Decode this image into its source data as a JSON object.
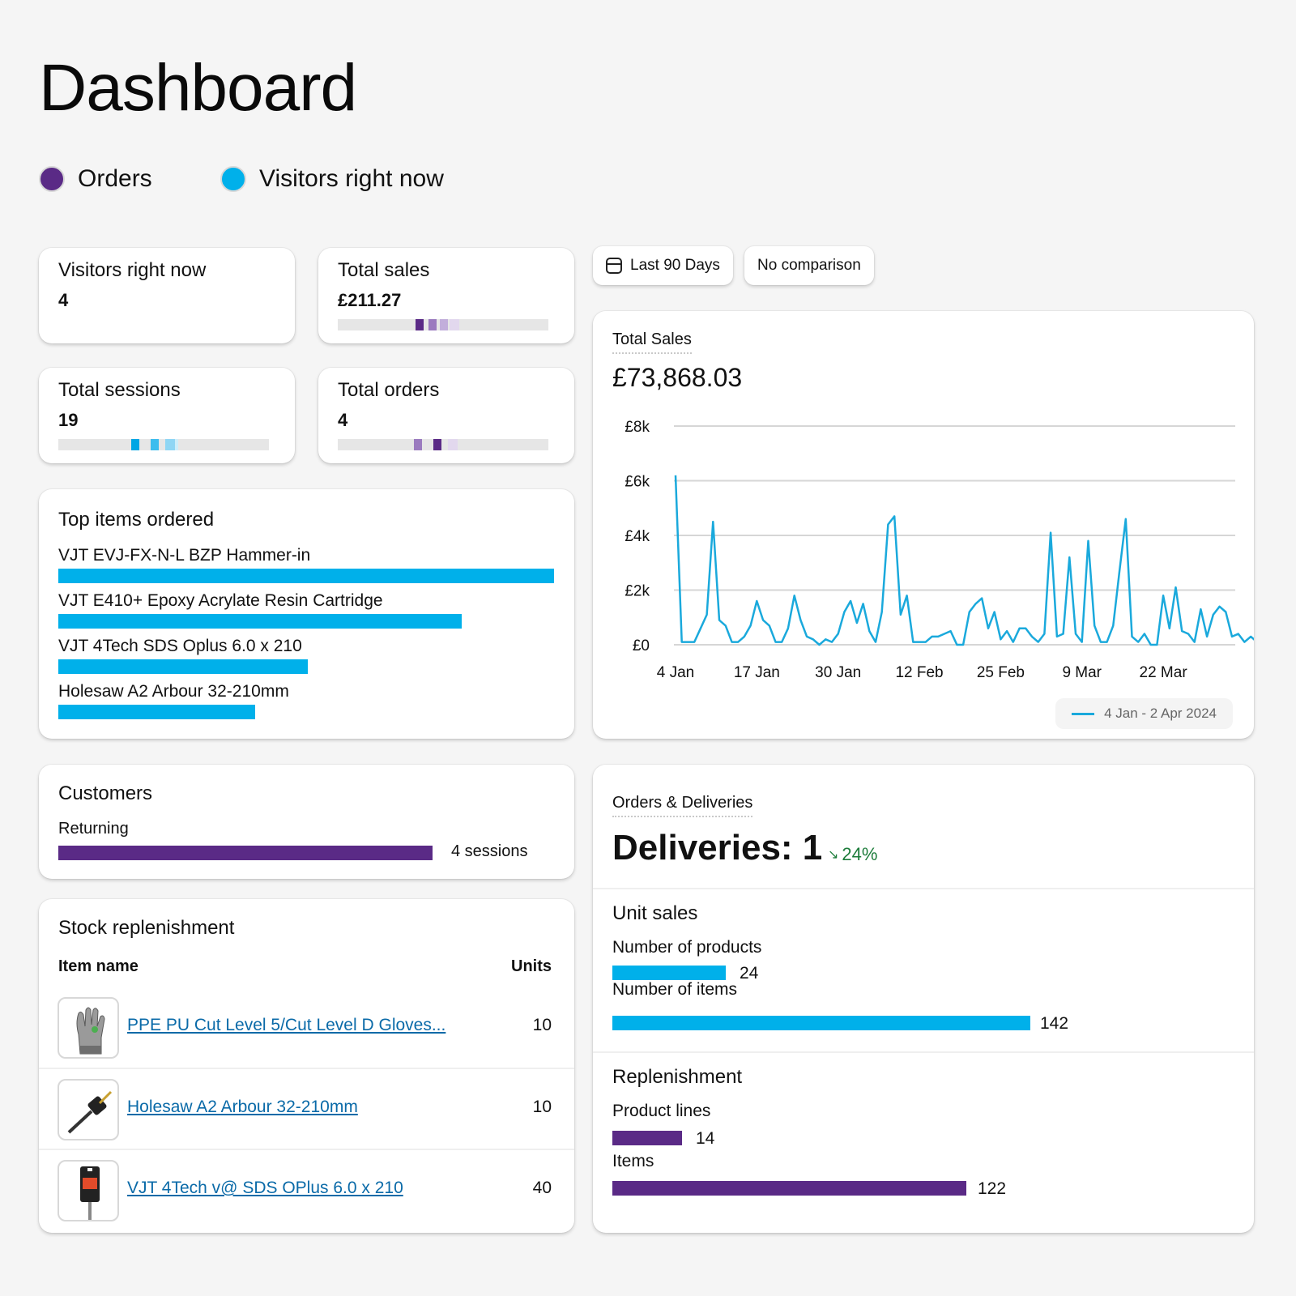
{
  "page": {
    "title": "Dashboard"
  },
  "legend": [
    {
      "label": "Orders",
      "color": "#5a2a86"
    },
    {
      "label": "Visitors right now",
      "color": "#00b0ea"
    }
  ],
  "kpis": {
    "visitors": {
      "label": "Visitors right now",
      "value": "4"
    },
    "sales": {
      "label": "Total sales",
      "value": "£211.27",
      "level": 0.58
    },
    "sessions": {
      "label": "Total sessions",
      "value": "19",
      "level": 0.58
    },
    "orders": {
      "label": "Total orders",
      "value": "4",
      "level": 0.58
    }
  },
  "filters": {
    "range_label": "Last 90 Days",
    "comparison_label": "No comparison"
  },
  "top_items": {
    "title": "Top items ordered",
    "items": [
      {
        "name": "VJT EVJ-FX-N-L BZP Hammer-in",
        "share": 1.0
      },
      {
        "name": "VJT E410+ Epoxy Acrylate Resin Cartridge",
        "share": 0.813
      },
      {
        "name": "VJT 4Tech SDS Oplus 6.0 x 210",
        "share": 0.503
      },
      {
        "name": "Holesaw A2 Arbour 32-210mm",
        "share": 0.397
      }
    ]
  },
  "total_sales_chart": {
    "title": "Total Sales",
    "total": "£73,868.03",
    "legend_label": "4 Jan - 2 Apr 2024",
    "color": "#1aa9dc",
    "chart_data": {
      "type": "line",
      "ylim": [
        0,
        8000
      ],
      "ytick_labels": [
        "£8k",
        "£6k",
        "£4k",
        "£2k",
        "£0"
      ],
      "yticks": [
        8000,
        6000,
        4000,
        2000,
        0
      ],
      "xtick_labels": [
        "4 Jan",
        "17 Jan",
        "30 Jan",
        "12 Feb",
        "25 Feb",
        "9 Mar",
        "22 Mar"
      ],
      "xticks": [
        0,
        13,
        26,
        39,
        52,
        65,
        78
      ],
      "xlim": [
        0,
        89
      ],
      "series": [
        {
          "name": "4 Jan - 2 Apr 2024",
          "values": [
            6200,
            100,
            100,
            100,
            600,
            1100,
            4500,
            900,
            700,
            100,
            100,
            300,
            700,
            1600,
            900,
            700,
            100,
            100,
            600,
            1800,
            900,
            300,
            200,
            0,
            200,
            100,
            400,
            1200,
            1600,
            800,
            1500,
            500,
            100,
            1200,
            4400,
            4700,
            1100,
            1800,
            100,
            100,
            100,
            300,
            300,
            400,
            500,
            0,
            0,
            1200,
            1500,
            1700,
            600,
            1200,
            200,
            500,
            100,
            600,
            600,
            300,
            100,
            400,
            4100,
            300,
            400,
            3200,
            400,
            100,
            3800,
            700,
            100,
            100,
            700,
            2700,
            4600,
            300,
            100,
            400,
            0,
            0,
            1800,
            600,
            2100,
            500,
            400,
            100,
            1300,
            300,
            1100,
            1400,
            1200,
            300,
            400,
            100,
            300,
            100,
            1200
          ]
        }
      ]
    }
  },
  "customers": {
    "title": "Customers",
    "returning_label": "Returning",
    "returning_value": "4 sessions",
    "returning_share": 1.0
  },
  "stock": {
    "title": "Stock replenishment",
    "col_item": "Item name",
    "col_units": "Units",
    "rows": [
      {
        "name": "PPE PU Cut Level 5/Cut Level D Gloves...",
        "units": "10",
        "icon": "gloves-icon"
      },
      {
        "name": "Holesaw A2 Arbour 32-210mm",
        "units": "10",
        "icon": "holesaw-arbour-icon"
      },
      {
        "name": "VJT 4Tech v@ SDS OPlus 6.0 x 210",
        "units": "40",
        "icon": "drill-bit-pack-icon"
      }
    ]
  },
  "orders_deliveries": {
    "title": "Orders & Deliveries",
    "headline": "Deliveries: 1",
    "change": "24%",
    "change_color": "#1c7c3a",
    "unit_sales": {
      "title": "Unit sales",
      "products_label": "Number of products",
      "products_value": "24",
      "items_label": "Number of items",
      "items_value": "142"
    },
    "replenishment": {
      "title": "Replenishment",
      "lines_label": "Product lines",
      "lines_value": "14",
      "items_label": "Items",
      "items_value": "122"
    }
  }
}
